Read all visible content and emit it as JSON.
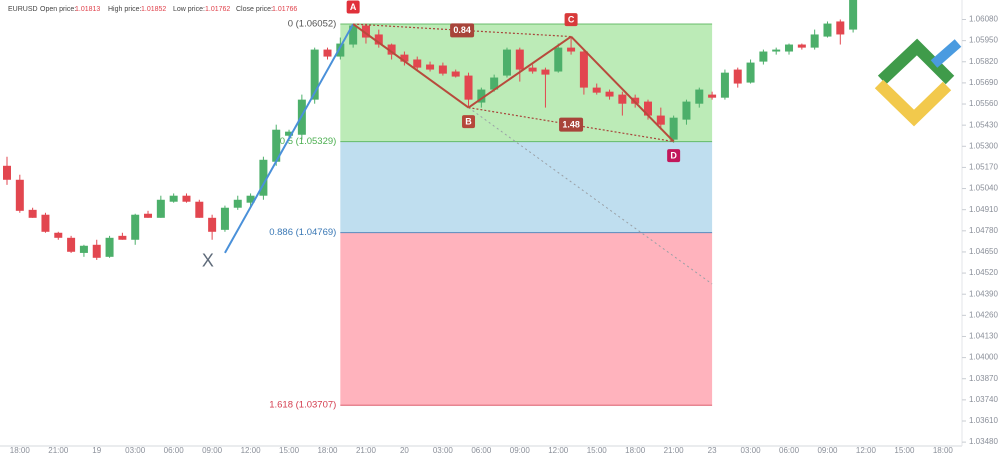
{
  "chart_data": {
    "type": "candlestick",
    "header": {
      "symbol": "EURUSD",
      "fields": [
        {
          "label": "Open price:",
          "value": 1.01813
        },
        {
          "label": "High price:",
          "value": 1.01852
        },
        {
          "label": "Low price:",
          "value": 1.01762
        },
        {
          "label": "Close price:",
          "value": 1.01766
        }
      ]
    },
    "categories": [
      null,
      "18:00",
      null,
      null,
      "21:00",
      null,
      null,
      "19",
      null,
      null,
      "03:00",
      null,
      null,
      "06:00",
      null,
      null,
      "09:00",
      null,
      null,
      "12:00",
      null,
      null,
      "15:00",
      null,
      null,
      "18:00",
      null,
      null,
      "21:00",
      null,
      null,
      "20",
      null,
      null,
      "03:00",
      null,
      null,
      "06:00",
      null,
      null,
      "09:00",
      null,
      null,
      "12:00",
      null,
      null,
      "15:00",
      null,
      null,
      "18:00",
      null,
      null,
      "21:00",
      null,
      null,
      "23",
      null,
      null,
      "03:00",
      null,
      null,
      "06:00",
      null,
      null,
      "09:00",
      null,
      null,
      "12:00",
      null,
      null,
      "15:00",
      null,
      null,
      "18:00",
      null
    ],
    "open": [
      1.0518,
      1.05094,
      1.04909,
      1.04879,
      1.04768,
      1.04737,
      1.04644,
      1.04694,
      1.0462,
      1.04749,
      1.04725,
      1.04885,
      1.0486,
      1.04959,
      1.04996,
      1.04959,
      1.0486,
      1.04786,
      1.04922,
      1.04953,
      1.04996,
      1.05205,
      1.05365,
      1.05371,
      1.05587,
      1.05895,
      1.05852,
      1.05926,
      1.06043,
      1.05988,
      1.05926,
      1.05864,
      1.05834,
      1.05803,
      1.05797,
      1.0576,
      1.05735,
      1.05569,
      1.05649,
      1.05735,
      1.05895,
      1.05784,
      1.05772,
      1.0576,
      1.05907,
      1.05883,
      1.05661,
      1.05636,
      1.05618,
      1.05599,
      1.05575,
      1.05489,
      1.05341,
      1.05464,
      1.05562,
      1.05618,
      1.05599,
      1.05772,
      1.05692,
      1.05821,
      1.05883,
      1.05883,
      1.05926,
      1.05907,
      1.05975,
      1.06068,
      1.06018,
      null,
      null,
      null,
      null,
      null,
      null,
      null,
      null
    ],
    "high": [
      1.05236,
      1.05125,
      1.04922,
      1.04891,
      1.04774,
      1.04749,
      1.04694,
      1.04725,
      1.04749,
      1.04768,
      1.04885,
      1.04903,
      1.04996,
      1.0501,
      1.0501,
      1.04971,
      1.04879,
      1.04935,
      1.04996,
      1.0501,
      1.05236,
      1.05433,
      1.05402,
      1.05618,
      1.05907,
      1.05907,
      1.05969,
      1.06055,
      1.06055,
      1.06018,
      1.05932,
      1.05883,
      1.05852,
      1.05821,
      1.05815,
      1.05772,
      1.05753,
      1.05661,
      1.05741,
      1.05907,
      1.05907,
      1.05803,
      1.05784,
      1.05932,
      1.05975,
      1.05895,
      1.05686,
      1.05649,
      1.05636,
      1.05618,
      1.05587,
      1.05538,
      1.05489,
      1.05587,
      1.05661,
      1.05636,
      1.05772,
      1.05784,
      1.05834,
      1.05895,
      1.05907,
      1.05932,
      1.05932,
      1.06018,
      1.06068,
      1.0608,
      1.0626,
      null,
      null,
      null,
      null,
      null,
      null,
      null,
      null
    ],
    "low": [
      1.05063,
      1.04891,
      1.0486,
      1.04768,
      1.04725,
      1.04644,
      1.0462,
      1.04601,
      1.04614,
      1.04725,
      1.04694,
      1.0486,
      1.0486,
      1.04953,
      1.04953,
      1.0486,
      1.04725,
      1.04774,
      1.04909,
      1.04922,
      1.04971,
      1.0518,
      1.05341,
      1.05341,
      1.05562,
      1.05834,
      1.05834,
      1.05907,
      1.05932,
      1.05907,
      1.05834,
      1.05797,
      1.05772,
      1.0576,
      1.05735,
      1.05723,
      1.05538,
      1.05538,
      1.05636,
      1.05723,
      1.05698,
      1.05747,
      1.05538,
      1.05753,
      1.05864,
      1.05618,
      1.05618,
      1.05587,
      1.05489,
      1.05538,
      1.05464,
      1.05402,
      1.05322,
      1.05433,
      1.05538,
      1.05587,
      1.05587,
      1.05661,
      1.05686,
      1.05803,
      1.05864,
      1.05864,
      1.05895,
      1.05895,
      1.05969,
      1.05926,
      1.06,
      null,
      null,
      null,
      null,
      null,
      null,
      null,
      null
    ],
    "close": [
      1.05094,
      1.04903,
      1.0486,
      1.04774,
      1.04737,
      1.04651,
      1.04688,
      1.04614,
      1.04737,
      1.04725,
      1.04879,
      1.0486,
      1.04971,
      1.04996,
      1.04959,
      1.0486,
      1.04774,
      1.04922,
      1.04971,
      1.04996,
      1.05217,
      1.05402,
      1.0539,
      1.05587,
      1.05895,
      1.05852,
      1.05932,
      1.06043,
      1.05969,
      1.05926,
      1.05864,
      1.05821,
      1.05784,
      1.05772,
      1.05747,
      1.05729,
      1.05587,
      1.05649,
      1.05723,
      1.05895,
      1.05772,
      1.0576,
      1.05741,
      1.05907,
      1.05883,
      1.05661,
      1.0563,
      1.05606,
      1.05562,
      1.05562,
      1.05489,
      1.05433,
      1.05476,
      1.05575,
      1.05649,
      1.05599,
      1.05753,
      1.05686,
      1.05815,
      1.05883,
      1.05895,
      1.05926,
      1.05907,
      1.05988,
      1.06055,
      1.05988,
      1.0625,
      null,
      null,
      null,
      null,
      null,
      null,
      null,
      null
    ],
    "up_color": "#4caf6a",
    "down_color": "#e2464f",
    "ylim": [
      1.0345,
      1.062
    ],
    "yticks": [
      {
        "value": 1.0608,
        "label": "1.06080"
      },
      {
        "value": 1.0595,
        "label": "1.05950"
      },
      {
        "value": 1.0582,
        "label": "1.05820"
      },
      {
        "value": 1.0569,
        "label": "1.05690"
      },
      {
        "value": 1.0556,
        "label": "1.05560"
      },
      {
        "value": 1.0543,
        "label": "1.05430"
      },
      {
        "value": 1.053,
        "label": "1.05300"
      },
      {
        "value": 1.0517,
        "label": "1.05170"
      },
      {
        "value": 1.0504,
        "label": "1.05040"
      },
      {
        "value": 1.0491,
        "label": "1.04910"
      },
      {
        "value": 1.0478,
        "label": "1.04780"
      },
      {
        "value": 1.0465,
        "label": "1.04650"
      },
      {
        "value": 1.0452,
        "label": "1.04520"
      },
      {
        "value": 1.0439,
        "label": "1.04390"
      },
      {
        "value": 1.0426,
        "label": "1.04260"
      },
      {
        "value": 1.0413,
        "label": "1.04130"
      },
      {
        "value": 1.04,
        "label": "1.04000"
      },
      {
        "value": 1.0387,
        "label": "1.03870"
      },
      {
        "value": 1.0374,
        "label": "1.03740"
      },
      {
        "value": 1.0361,
        "label": "1.03610"
      },
      {
        "value": 1.0348,
        "label": "1.03480"
      }
    ],
    "fib_range": [
      26,
      55
    ],
    "fib_levels": [
      {
        "label": "0 (1.06052)",
        "price": 1.06052,
        "color": "#555555"
      },
      {
        "label": "0.5 (1.05329)",
        "price": 1.05329,
        "color": "#4caf50",
        "fill": "#bcebb7"
      },
      {
        "label": "0.886 (1.04769)",
        "price": 1.04769,
        "color": "#3a78b5",
        "fill": "#bfdeef"
      },
      {
        "label": "1.618 (1.03707)",
        "price": 1.03707,
        "color": "#d43d4f",
        "fill": "#ffb3bd"
      }
    ],
    "pattern": {
      "points": [
        {
          "label": "X",
          "x": 17,
          "price": 1.04644
        },
        {
          "label": "A",
          "x": 27,
          "price": 1.06052,
          "color": "#e0303a"
        },
        {
          "label": "B",
          "x": 36,
          "price": 1.05538,
          "color": "#b5473a"
        },
        {
          "label": "C",
          "x": 44,
          "price": 1.05975,
          "color": "#d83a3a"
        },
        {
          "label": "D",
          "x": 52,
          "price": 1.05329,
          "color": "#c2185b"
        }
      ],
      "leg_colors": [
        "#4a90d9",
        "#b84a3c",
        "#b84a3c",
        "#b84a3c"
      ],
      "ratios": [
        {
          "value": 0.84,
          "between": [
            1,
            3
          ]
        },
        {
          "value": 1.48,
          "between": [
            2,
            4
          ]
        }
      ],
      "ratio_color": "#a8443a"
    }
  }
}
